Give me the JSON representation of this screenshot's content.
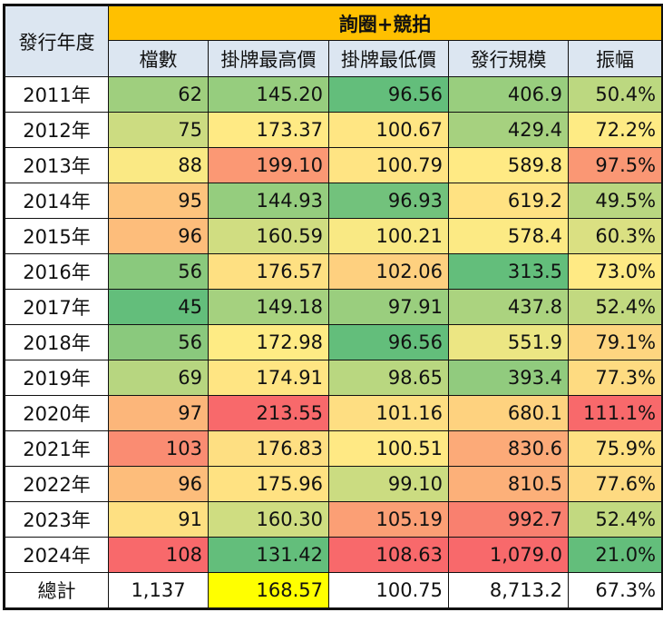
{
  "table": {
    "year_header": "發行年度",
    "group_header": "詢圈+競拍",
    "columns": [
      "檔數",
      "掛牌最高價",
      "掛牌最低價",
      "發行規模",
      "振幅"
    ],
    "rows": [
      {
        "year": "2011年",
        "values": [
          "62",
          "145.20",
          "96.56",
          "406.9",
          "50.4%"
        ]
      },
      {
        "year": "2012年",
        "values": [
          "75",
          "173.37",
          "100.67",
          "429.4",
          "72.2%"
        ]
      },
      {
        "year": "2013年",
        "values": [
          "88",
          "199.10",
          "100.79",
          "589.8",
          "97.5%"
        ]
      },
      {
        "year": "2014年",
        "values": [
          "95",
          "144.93",
          "96.93",
          "619.2",
          "49.5%"
        ]
      },
      {
        "year": "2015年",
        "values": [
          "96",
          "160.59",
          "100.21",
          "578.4",
          "60.3%"
        ]
      },
      {
        "year": "2016年",
        "values": [
          "56",
          "176.57",
          "102.06",
          "313.5",
          "73.0%"
        ]
      },
      {
        "year": "2017年",
        "values": [
          "45",
          "149.18",
          "97.91",
          "437.8",
          "52.4%"
        ]
      },
      {
        "year": "2018年",
        "values": [
          "56",
          "172.98",
          "96.56",
          "551.9",
          "79.1%"
        ]
      },
      {
        "year": "2019年",
        "values": [
          "69",
          "174.91",
          "98.65",
          "393.4",
          "77.3%"
        ]
      },
      {
        "year": "2020年",
        "values": [
          "97",
          "213.55",
          "101.16",
          "680.1",
          "111.1%"
        ]
      },
      {
        "year": "2021年",
        "values": [
          "103",
          "176.83",
          "100.51",
          "830.6",
          "75.9%"
        ]
      },
      {
        "year": "2022年",
        "values": [
          "96",
          "175.96",
          "99.10",
          "810.5",
          "77.6%"
        ]
      },
      {
        "year": "2023年",
        "values": [
          "91",
          "160.30",
          "105.19",
          "992.7",
          "52.4%"
        ]
      },
      {
        "year": "2024年",
        "values": [
          "108",
          "131.42",
          "108.63",
          "1,079.0",
          "21.0%"
        ]
      }
    ],
    "total": {
      "label": "總計",
      "values": [
        "1,137",
        "168.57",
        "100.75",
        "8,713.2",
        "67.3%"
      ]
    },
    "total_highlight_color": "#FFFF00"
  },
  "colors": {
    "title_bg": "#FFC000",
    "header_bg": "#DCE6F1",
    "scale_low": "#63BE7B",
    "scale_mid": "#FFEB84",
    "scale_high": "#F8696B"
  }
}
